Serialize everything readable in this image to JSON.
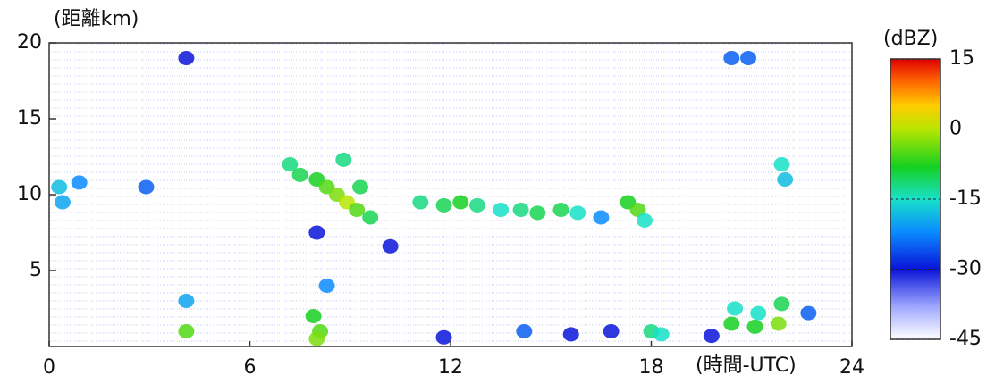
{
  "chart_data": {
    "type": "scatter",
    "y_label": "(距離km)",
    "x_label": "(時間-UTC)",
    "colorbar_label": "(dBZ)",
    "xlim": [
      0,
      24
    ],
    "ylim": [
      0,
      20
    ],
    "xticks": [
      0,
      6,
      12,
      18,
      24
    ],
    "yticks": [
      5,
      10,
      15,
      20
    ],
    "clim": [
      -45,
      15
    ],
    "cticks": [
      15,
      0,
      -15,
      -30,
      -45
    ],
    "colorscale": [
      {
        "value": -45,
        "color": "#ffffff"
      },
      {
        "value": -38,
        "color": "#9fa8ff"
      },
      {
        "value": -30,
        "color": "#0a14d8"
      },
      {
        "value": -22,
        "color": "#0a8cff"
      },
      {
        "value": -15,
        "color": "#18e0c8"
      },
      {
        "value": -8,
        "color": "#16d020"
      },
      {
        "value": 0,
        "color": "#b8e600"
      },
      {
        "value": 5,
        "color": "#ffcc00"
      },
      {
        "value": 10,
        "color": "#ff6a00"
      },
      {
        "value": 15,
        "color": "#e00000"
      }
    ],
    "x": [
      0.3,
      0.4,
      0.9,
      2.9,
      7.2,
      7.5,
      8.0,
      8.3,
      8.6,
      8.9,
      9.2,
      9.6,
      8.8,
      9.3,
      8.0,
      10.2,
      8.3,
      7.9,
      8.1,
      8.0,
      4.1,
      4.1,
      11.1,
      11.8,
      12.3,
      12.8,
      13.5,
      14.1,
      14.6,
      15.3,
      15.8,
      16.5,
      17.3,
      17.6,
      17.8,
      11.8,
      14.2,
      15.6,
      16.8,
      18.0,
      18.3,
      19.8,
      20.4,
      20.5,
      21.1,
      21.2,
      21.8,
      21.9,
      22.7,
      21.9,
      22.0,
      20.4,
      20.9,
      4.1
    ],
    "y": [
      10.5,
      9.5,
      10.8,
      10.5,
      12,
      11.3,
      11,
      10.5,
      10,
      9.5,
      9,
      8.5,
      12.3,
      10.5,
      7.5,
      6.6,
      4,
      2,
      1,
      0.5,
      1,
      3,
      9.5,
      9.3,
      9.5,
      9.3,
      9,
      9,
      8.8,
      9,
      8.8,
      8.5,
      9.5,
      9,
      8.3,
      0.6,
      1,
      0.8,
      1,
      1,
      0.8,
      0.7,
      1.5,
      2.5,
      1.3,
      2.2,
      1.5,
      2.8,
      2.2,
      12,
      11,
      19,
      19,
      19
    ],
    "values": [
      -18,
      -20,
      -22,
      -25,
      -12,
      -10,
      -8,
      -5,
      -3,
      0,
      -5,
      -10,
      -12,
      -10,
      -30,
      -30,
      -22,
      -8,
      -5,
      -3,
      -5,
      -20,
      -12,
      -10,
      -8,
      -12,
      -15,
      -12,
      -10,
      -10,
      -15,
      -22,
      -8,
      -5,
      -15,
      -30,
      -25,
      -30,
      -30,
      -12,
      -15,
      -30,
      -8,
      -15,
      -8,
      -15,
      -3,
      -10,
      -25,
      -15,
      -18,
      -25,
      -25,
      -30
    ]
  }
}
